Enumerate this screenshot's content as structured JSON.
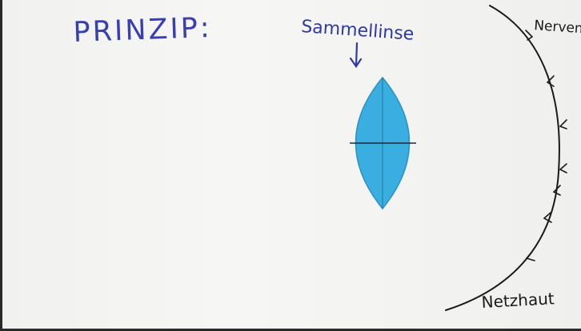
{
  "title": "PRINZIP:",
  "lens_label": "Sammellinse",
  "nerve_label": "Nerven",
  "retina_label": "Netzhaut",
  "colors": {
    "title_ink": "#3a3fb0",
    "lens_ink": "#2e3aa3",
    "black_ink": "#1a1a1a",
    "lens_fill": "#3aaee0",
    "lens_edge": "#2b92c2"
  }
}
